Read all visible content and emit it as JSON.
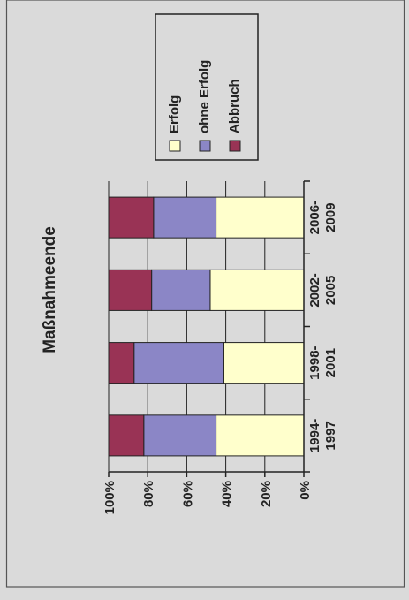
{
  "chart_data": {
    "type": "bar",
    "stacked": "percent",
    "orientation": "rotated-90-ccw",
    "title": "Maßnahmeende",
    "categories": [
      "1994-\n1997",
      "1998-\n2001",
      "2002-\n2005",
      "2006-\n2009"
    ],
    "series": [
      {
        "name": "Erfolg",
        "color": "#ffffcc",
        "values": [
          45,
          41,
          48,
          45
        ]
      },
      {
        "name": "ohne Erfolg",
        "color": "#8b86c6",
        "values": [
          37,
          46,
          30,
          32
        ]
      },
      {
        "name": "Abbruch",
        "color": "#993355",
        "values": [
          18,
          13,
          22,
          23
        ]
      }
    ],
    "value_axis": {
      "min": 0,
      "max": 100,
      "ticks": [
        "0%",
        "20%",
        "40%",
        "60%",
        "80%",
        "100%"
      ]
    },
    "grid": true,
    "legend_position": "right"
  }
}
